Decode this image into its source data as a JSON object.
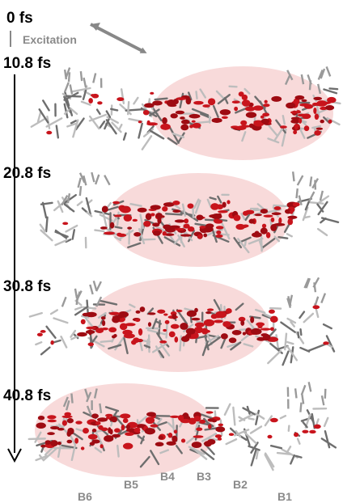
{
  "excitation_label": "Excitation",
  "timeline": [
    "0 fs",
    "10.8 fs",
    "20.8 fs",
    "30.8 fs",
    "40.8 fs"
  ],
  "bases": [
    "B6",
    "B5",
    "B4",
    "B3",
    "B2",
    "B1"
  ]
}
